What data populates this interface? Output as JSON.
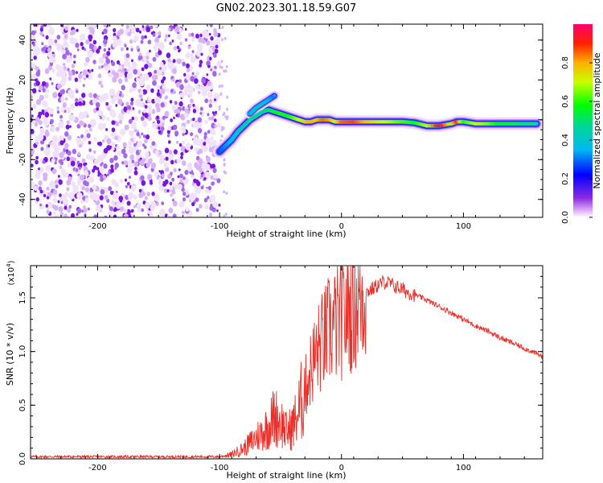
{
  "chart_data": [
    {
      "type": "heatmap",
      "title": "GN02.2023.301.18.59.G07",
      "xlabel": "Height of straight line (km)",
      "ylabel": "Frequency (Hz)",
      "xlim": [
        -255,
        165
      ],
      "ylim": [
        -49,
        48
      ],
      "xticks": [
        -200,
        -100,
        0,
        100
      ],
      "yticks": [
        -40,
        -20,
        0,
        20,
        40
      ],
      "noise_region_km": [
        -255,
        -100
      ],
      "ridge": [
        {
          "x": -100,
          "f": -16,
          "amp": 0.28
        },
        {
          "x": -95,
          "f": -13,
          "amp": 0.32
        },
        {
          "x": -90,
          "f": -10,
          "amp": 0.36
        },
        {
          "x": -85,
          "f": -6,
          "amp": 0.4
        },
        {
          "x": -80,
          "f": -3,
          "amp": 0.42
        },
        {
          "x": -75,
          "f": 0,
          "amp": 0.45
        },
        {
          "x": -70,
          "f": 2,
          "amp": 0.48
        },
        {
          "x": -65,
          "f": 4,
          "amp": 0.45
        },
        {
          "x": -60,
          "f": 5,
          "amp": 0.5
        },
        {
          "x": -55,
          "f": 4,
          "amp": 0.55
        },
        {
          "x": -50,
          "f": 3,
          "amp": 0.6
        },
        {
          "x": -45,
          "f": 2,
          "amp": 0.58
        },
        {
          "x": -40,
          "f": 1,
          "amp": 0.62
        },
        {
          "x": -35,
          "f": 0,
          "amp": 0.7
        },
        {
          "x": -30,
          "f": -1,
          "amp": 0.75
        },
        {
          "x": -25,
          "f": -1,
          "amp": 0.8
        },
        {
          "x": -20,
          "f": 0,
          "amp": 0.78
        },
        {
          "x": -15,
          "f": 0,
          "amp": 0.85
        },
        {
          "x": -10,
          "f": 0,
          "amp": 0.82
        },
        {
          "x": -5,
          "f": -1,
          "amp": 0.7
        },
        {
          "x": 0,
          "f": -1,
          "amp": 0.85
        },
        {
          "x": 10,
          "f": -1,
          "amp": 0.88
        },
        {
          "x": 20,
          "f": -1,
          "amp": 0.78
        },
        {
          "x": 30,
          "f": -1,
          "amp": 0.72
        },
        {
          "x": 40,
          "f": -1,
          "amp": 0.68
        },
        {
          "x": 50,
          "f": -1,
          "amp": 0.62
        },
        {
          "x": 60,
          "f": -1.5,
          "amp": 0.58
        },
        {
          "x": 70,
          "f": -3,
          "amp": 0.7
        },
        {
          "x": 80,
          "f": -3,
          "amp": 0.95
        },
        {
          "x": 90,
          "f": -2,
          "amp": 0.72
        },
        {
          "x": 95,
          "f": -1,
          "amp": 0.9
        },
        {
          "x": 100,
          "f": -1,
          "amp": 0.6
        },
        {
          "x": 110,
          "f": -2,
          "amp": 0.7
        },
        {
          "x": 120,
          "f": -2,
          "amp": 0.65
        },
        {
          "x": 130,
          "f": -2,
          "amp": 0.55
        },
        {
          "x": 140,
          "f": -2,
          "amp": 0.55
        },
        {
          "x": 150,
          "f": -2,
          "amp": 0.5
        },
        {
          "x": 160,
          "f": -2,
          "amp": 0.5
        }
      ],
      "branch": [
        {
          "x": -75,
          "f": 3,
          "amp": 0.35
        },
        {
          "x": -70,
          "f": 6,
          "amp": 0.4
        },
        {
          "x": -65,
          "f": 8,
          "amp": 0.38
        },
        {
          "x": -60,
          "f": 10,
          "amp": 0.35
        },
        {
          "x": -55,
          "f": 12,
          "amp": 0.3
        }
      ],
      "colorbar": {
        "label": "Normalized spectral amplitude",
        "range": [
          0,
          1
        ],
        "ticks": [
          "0.0",
          "0.2",
          "0.4",
          "0.6",
          "0.8"
        ],
        "tick_values": [
          0,
          0.2,
          0.4,
          0.6,
          0.8
        ]
      }
    },
    {
      "type": "line",
      "xlabel": "Height of straight line (km)",
      "ylabel": "SNR (10 * v/v)",
      "exponent_label": "(x10",
      "exponent_power": "4",
      "exponent_close": ")",
      "xlim": [
        -255,
        165
      ],
      "ylim": [
        0,
        18000
      ],
      "xticks": [
        -200,
        -100,
        0,
        100
      ],
      "yticks": [
        0,
        5000,
        10000,
        15000
      ],
      "ytick_labels": [
        "0.0",
        "0.5",
        "1.0",
        "1.5"
      ],
      "color": "#e8302a",
      "series": [
        {
          "name": "SNR",
          "x": [
            -255,
            -200,
            -150,
            -100,
            -90,
            -80,
            -70,
            -60,
            -55,
            -50,
            -45,
            -40,
            -35,
            -30,
            -25,
            -20,
            -15,
            -10,
            -5,
            0,
            5,
            10,
            15,
            20,
            25,
            30,
            35,
            40,
            45,
            50,
            55,
            60,
            70,
            80,
            90,
            100,
            110,
            120,
            130,
            140,
            150,
            160,
            165
          ],
          "y": [
            200,
            200,
            200,
            200,
            400,
            1000,
            2000,
            3000,
            4000,
            3500,
            2500,
            3000,
            4500,
            6500,
            8500,
            10000,
            11000,
            12000,
            12500,
            13000,
            13800,
            14500,
            15000,
            15500,
            15800,
            16200,
            16500,
            16300,
            16000,
            15800,
            15500,
            15300,
            14800,
            14200,
            13600,
            13000,
            12400,
            11900,
            11300,
            10800,
            10300,
            9800,
            9500
          ]
        }
      ]
    }
  ],
  "accent_color": "#e8302a"
}
